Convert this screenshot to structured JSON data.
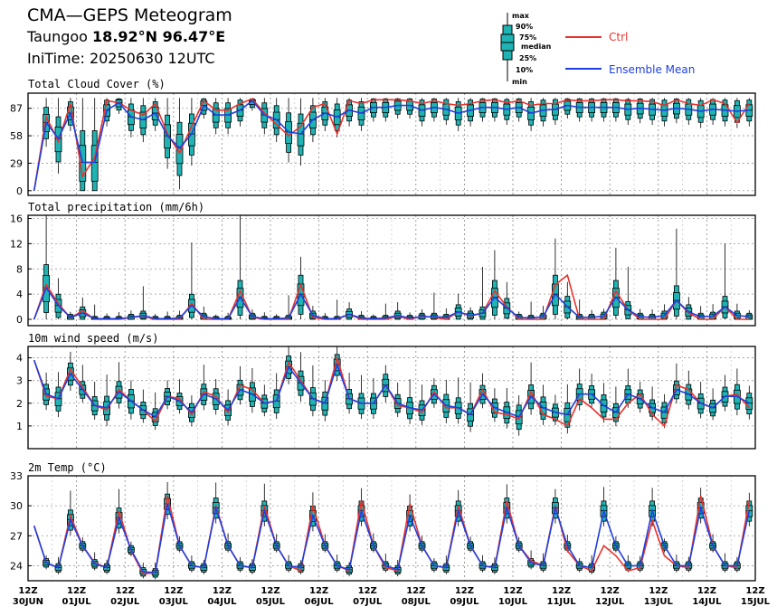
{
  "header": {
    "title": "CMA—GEPS Meteogram",
    "location_name": "Taungoo",
    "location_coords": "18.92°N 96.47°E",
    "init_time": "IniTime: 20250630 12UTC"
  },
  "legend": {
    "box_labels": [
      "max",
      "90%",
      "75%",
      "median",
      "25%",
      "10%",
      "min"
    ],
    "ctrl_label": "Ctrl",
    "mean_label": "Ensemble Mean",
    "ctrl_color": "#e8322d",
    "mean_color": "#1f3fe0",
    "box_fill": "#1fb3b3"
  },
  "chart_data": [
    {
      "type": "line",
      "title": "Total Cloud Cover (%)",
      "ylim": [
        -5,
        103
      ],
      "yticks": [
        0,
        29,
        58,
        87
      ],
      "x_step_hours": 6,
      "x": [
        "30JUN 12Z",
        "30JUN 18Z",
        "01JUL 00Z",
        "01JUL 06Z",
        "01JUL 12Z",
        "01JUL 18Z",
        "02JUL 00Z",
        "02JUL 06Z",
        "02JUL 12Z",
        "02JUL 18Z",
        "03JUL 00Z",
        "03JUL 06Z",
        "03JUL 12Z",
        "03JUL 18Z",
        "04JUL 00Z",
        "04JUL 06Z",
        "04JUL 12Z",
        "04JUL 18Z",
        "05JUL 00Z",
        "05JUL 06Z",
        "05JUL 12Z",
        "05JUL 18Z",
        "06JUL 00Z",
        "06JUL 06Z",
        "06JUL 12Z",
        "06JUL 18Z",
        "07JUL 00Z",
        "07JUL 06Z",
        "07JUL 12Z",
        "07JUL 18Z",
        "08JUL 00Z",
        "08JUL 06Z",
        "08JUL 12Z",
        "08JUL 18Z",
        "09JUL 00Z",
        "09JUL 06Z",
        "09JUL 12Z",
        "09JUL 18Z",
        "10JUL 00Z",
        "10JUL 06Z",
        "10JUL 12Z",
        "10JUL 18Z",
        "11JUL 00Z",
        "11JUL 06Z",
        "11JUL 12Z",
        "11JUL 18Z",
        "12JUL 00Z",
        "12JUL 06Z",
        "12JUL 12Z",
        "12JUL 18Z",
        "13JUL 00Z",
        "13JUL 06Z",
        "13JUL 12Z",
        "13JUL 18Z",
        "14JUL 00Z",
        "14JUL 06Z",
        "14JUL 12Z",
        "14JUL 18Z",
        "15JUL 00Z",
        "15JUL 06Z"
      ],
      "series": [
        {
          "name": "Ctrl",
          "values": [
            0,
            78,
            52,
            92,
            15,
            35,
            95,
            93,
            85,
            80,
            92,
            60,
            40,
            68,
            95,
            85,
            85,
            92,
            97,
            82,
            70,
            58,
            68,
            88,
            92,
            60,
            95,
            92,
            96,
            96,
            96,
            95,
            92,
            95,
            92,
            90,
            92,
            95,
            96,
            93,
            95,
            90,
            92,
            92,
            96,
            95,
            95,
            96,
            96,
            95,
            95,
            94,
            90,
            96,
            92,
            90,
            96,
            92,
            72,
            92
          ]
        },
        {
          "name": "Ensemble Mean",
          "values": [
            0,
            72,
            55,
            82,
            30,
            30,
            85,
            93,
            78,
            75,
            82,
            58,
            45,
            60,
            90,
            80,
            80,
            85,
            95,
            80,
            75,
            62,
            60,
            75,
            82,
            78,
            85,
            82,
            88,
            88,
            90,
            90,
            85,
            88,
            86,
            82,
            85,
            88,
            88,
            86,
            88,
            82,
            85,
            86,
            90,
            88,
            88,
            88,
            88,
            86,
            87,
            86,
            85,
            87,
            86,
            84,
            86,
            85,
            84,
            85
          ]
        }
      ],
      "whisker_max": [
        0,
        92,
        78,
        97,
        72,
        55,
        98,
        98,
        97,
        97,
        97,
        95,
        95,
        96,
        98,
        98,
        98,
        98,
        98,
        98,
        95,
        96,
        97,
        98,
        98,
        98,
        98,
        98,
        98,
        98,
        98,
        98,
        98,
        98,
        98,
        98,
        98,
        98,
        98,
        98,
        98,
        98,
        98,
        98,
        98,
        98,
        98,
        98,
        98,
        98,
        98,
        98,
        98,
        98,
        98,
        98,
        98,
        98,
        98,
        98
      ]
    },
    {
      "type": "line",
      "title": "Total precipitation (mm/6h)",
      "ylim": [
        -1,
        16.5
      ],
      "yticks": [
        0,
        4,
        8,
        12,
        16
      ],
      "series": [
        {
          "name": "Ctrl",
          "values": [
            0,
            5.5,
            2.5,
            0.2,
            1.4,
            0,
            0,
            0,
            0.3,
            0.5,
            0,
            0,
            0,
            2.5,
            0,
            0,
            0,
            4.5,
            0.3,
            0,
            0,
            0,
            5.5,
            0.3,
            0,
            0,
            0.8,
            0,
            0,
            0,
            0.5,
            0,
            0.5,
            0.3,
            0,
            1.2,
            0.5,
            1.0,
            4.5,
            2.0,
            0,
            0,
            0,
            5.5,
            7.0,
            0,
            0,
            0,
            4.5,
            1.5,
            0,
            0,
            0,
            3.0,
            1.0,
            0,
            0,
            2.0,
            0,
            0
          ]
        },
        {
          "name": "Ensemble Mean",
          "values": [
            0,
            5.0,
            2.2,
            0.3,
            1.0,
            0.1,
            0.1,
            0.1,
            0.3,
            0.6,
            0.1,
            0.1,
            0.2,
            2.2,
            0.4,
            0.1,
            0.1,
            3.5,
            0.4,
            0.1,
            0.1,
            0.2,
            4.0,
            0.6,
            0.1,
            0.1,
            0.8,
            0.2,
            0.1,
            0.2,
            0.6,
            0.2,
            0.4,
            0.4,
            0.3,
            1.2,
            0.6,
            1.0,
            3.5,
            1.8,
            0.3,
            0.2,
            0.4,
            4.0,
            2.0,
            0.3,
            0.3,
            0.5,
            3.5,
            1.5,
            0.4,
            0.3,
            0.6,
            3.0,
            1.2,
            0.4,
            0.5,
            2.0,
            0.6,
            0.4
          ]
        }
      ]
    },
    {
      "type": "line",
      "title": "10m wind speed (m/s)",
      "ylim": [
        0,
        4.5
      ],
      "yticks": [
        1,
        2,
        3,
        4
      ],
      "series": [
        {
          "name": "Ctrl",
          "values": [
            3.9,
            2.3,
            2.2,
            3.5,
            2.7,
            1.9,
            1.7,
            2.6,
            2.1,
            1.7,
            1.2,
            2.3,
            2.2,
            1.5,
            2.5,
            2.3,
            1.6,
            2.8,
            2.6,
            2.0,
            2.1,
            3.8,
            3.0,
            2.2,
            2.0,
            4.0,
            2.2,
            2.0,
            2.0,
            2.8,
            1.9,
            1.8,
            1.6,
            2.5,
            1.8,
            1.8,
            1.5,
            2.6,
            1.6,
            1.5,
            1.3,
            2.5,
            1.5,
            1.3,
            1.0,
            2.2,
            1.8,
            1.3,
            1.3,
            2.0,
            2.4,
            1.5,
            1.0,
            2.8,
            2.6,
            2.0,
            1.8,
            2.3,
            2.4,
            1.8
          ]
        },
        {
          "name": "Ensemble Mean",
          "values": [
            3.9,
            2.4,
            2.2,
            3.3,
            2.6,
            1.9,
            1.8,
            2.5,
            2.1,
            1.7,
            1.4,
            2.3,
            2.1,
            1.6,
            2.4,
            2.2,
            1.7,
            2.6,
            2.4,
            2.0,
            2.1,
            3.6,
            2.9,
            2.2,
            2.0,
            3.7,
            2.2,
            2.0,
            2.0,
            2.8,
            2.0,
            1.8,
            1.7,
            2.4,
            1.9,
            1.8,
            1.5,
            2.4,
            1.8,
            1.6,
            1.4,
            2.3,
            1.8,
            1.6,
            1.5,
            2.4,
            2.4,
            1.9,
            1.6,
            2.4,
            2.2,
            1.8,
            1.6,
            2.6,
            2.4,
            2.0,
            1.8,
            2.3,
            2.3,
            2.0
          ]
        }
      ]
    },
    {
      "type": "line",
      "title": "2m Temp (°C)",
      "ylim": [
        22.5,
        33
      ],
      "yticks": [
        24,
        27,
        30,
        33
      ],
      "series": [
        {
          "name": "Ctrl",
          "values": [
            28.0,
            24.3,
            23.8,
            29.0,
            26.0,
            24.3,
            23.8,
            29.5,
            25.5,
            23.2,
            23.3,
            31.0,
            26.0,
            24.0,
            23.8,
            30.0,
            26.0,
            24.0,
            23.8,
            30.0,
            26.0,
            24.0,
            23.5,
            30.0,
            26.0,
            24.0,
            23.5,
            30.5,
            26.0,
            23.8,
            23.5,
            30.2,
            26.0,
            24.0,
            23.8,
            30.0,
            26.0,
            24.0,
            23.8,
            30.5,
            26.0,
            24.5,
            24.0,
            30.0,
            25.5,
            24.0,
            23.5,
            26.0,
            25.0,
            23.5,
            23.8,
            28.5,
            25.0,
            24.0,
            23.8,
            31.0,
            26.0,
            24.0,
            23.8,
            30.5
          ]
        },
        {
          "name": "Ensemble Mean",
          "values": [
            28.0,
            24.3,
            23.8,
            28.6,
            26.0,
            24.2,
            23.8,
            28.8,
            25.6,
            23.4,
            23.3,
            30.2,
            26.0,
            24.0,
            23.8,
            29.8,
            26.0,
            24.0,
            23.8,
            29.5,
            26.0,
            24.0,
            23.8,
            29.0,
            26.0,
            24.0,
            23.6,
            29.5,
            26.0,
            24.0,
            23.6,
            29.0,
            26.0,
            24.0,
            23.8,
            29.5,
            26.0,
            24.0,
            23.8,
            29.8,
            26.0,
            24.3,
            24.0,
            29.8,
            26.0,
            24.0,
            23.8,
            29.5,
            26.0,
            24.0,
            24.0,
            29.5,
            26.0,
            24.0,
            24.0,
            29.8,
            26.0,
            24.0,
            24.0,
            29.5
          ]
        }
      ]
    }
  ],
  "x_axis": {
    "hour_labels": [
      "12Z",
      "12Z",
      "12Z",
      "12Z",
      "12Z",
      "12Z",
      "12Z",
      "12Z",
      "12Z",
      "12Z",
      "12Z",
      "12Z",
      "12Z",
      "12Z",
      "12Z",
      "12Z"
    ],
    "date_labels": [
      "30JUN",
      "01JUL",
      "02JUL",
      "03JUL",
      "04JUL",
      "05JUL",
      "06JUL",
      "07JUL",
      "08JUL",
      "09JUL",
      "10JUL",
      "11JUL",
      "12JUL",
      "13JUL",
      "14JUL",
      "15JUL"
    ]
  }
}
